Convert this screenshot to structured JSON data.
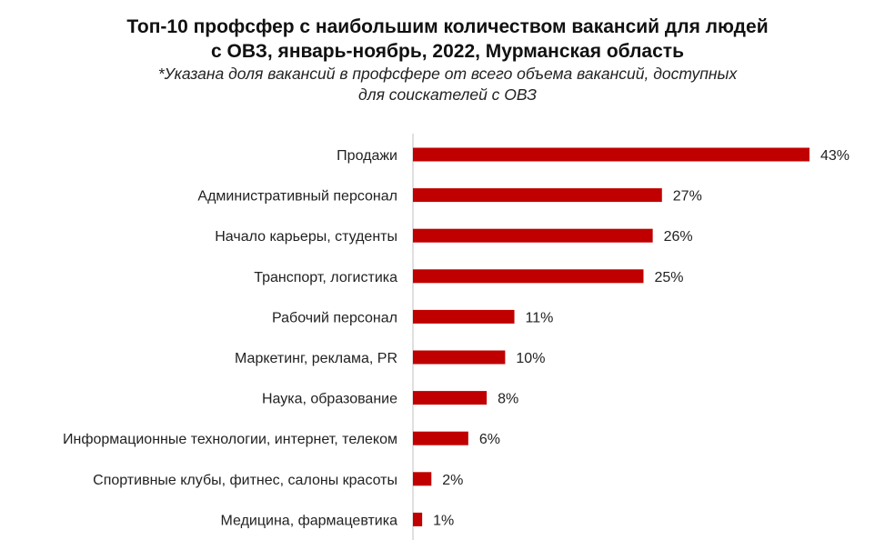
{
  "title": {
    "line1": "Топ-10 профсфер с наибольшим количеством вакансий для людей",
    "line2": "с ОВЗ, январь-ноябрь, 2022, Мурманская область"
  },
  "subtitle": {
    "line1": "*Указана доля вакансий в профсфере от всего объема вакансий, доступных",
    "line2": "для соискателей с ОВЗ"
  },
  "chart_data": {
    "type": "bar",
    "orientation": "horizontal",
    "title": "Топ-10 профсфер с наибольшим количеством вакансий для людей с ОВЗ, январь-ноябрь, 2022, Мурманская область",
    "subtitle": "*Указана доля вакансий в профсфере от всего объема вакансий, доступных для соискателей с ОВЗ",
    "categories": [
      "Продажи",
      "Административный персонал",
      "Начало карьеры, студенты",
      "Транспорт, логистика",
      "Рабочий персонал",
      "Маркетинг, реклама, PR",
      "Наука, образование",
      "Информационные технологии, интернет, телеком",
      "Спортивные клубы, фитнес, салоны красоты",
      "Медицина, фармацевтика"
    ],
    "values": [
      43,
      27,
      26,
      25,
      11,
      10,
      8,
      6,
      2,
      1
    ],
    "value_labels": [
      "43%",
      "27%",
      "26%",
      "25%",
      "11%",
      "10%",
      "8%",
      "6%",
      "2%",
      "1%"
    ],
    "unit": "%",
    "bar_color": "#c00000",
    "grid": false,
    "legend": "none"
  }
}
